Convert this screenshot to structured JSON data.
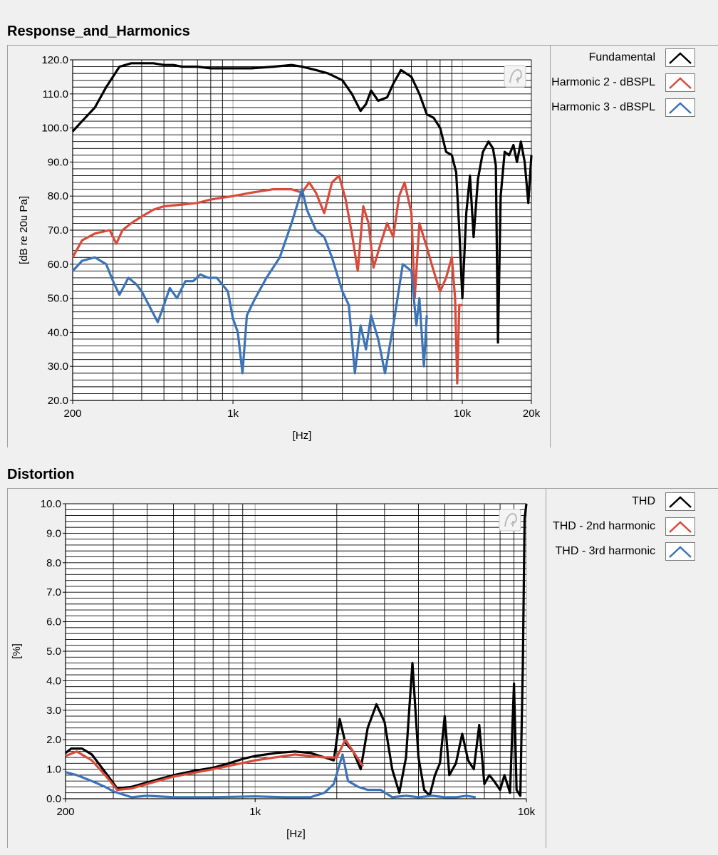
{
  "chart_data": [
    {
      "type": "line",
      "title": "Response_and_Harmonics",
      "xlabel": "[Hz]",
      "ylabel": "[dB re 20u Pa]",
      "xscale": "log",
      "xlim": [
        200,
        20000
      ],
      "ylim": [
        20,
        120
      ],
      "yticks": [
        "20.0",
        "30.0",
        "40.0",
        "50.0",
        "60.0",
        "70.0",
        "80.0",
        "90.0",
        "100.0",
        "110.0",
        "120.0"
      ],
      "xticks": [
        {
          "v": 200,
          "label": "200"
        },
        {
          "v": 1000,
          "label": "1k"
        },
        {
          "v": 10000,
          "label": "10k"
        },
        {
          "v": 20000,
          "label": "20k"
        }
      ],
      "grid": true,
      "legend_position": "right",
      "series": [
        {
          "name": "Fundamental",
          "color": "#000000",
          "points": [
            [
              200,
              99
            ],
            [
              220,
              102
            ],
            [
              250,
              106
            ],
            [
              280,
              112
            ],
            [
              320,
              118
            ],
            [
              360,
              119
            ],
            [
              400,
              119
            ],
            [
              450,
              119
            ],
            [
              500,
              118.5
            ],
            [
              550,
              118.5
            ],
            [
              600,
              118
            ],
            [
              700,
              118
            ],
            [
              800,
              117.5
            ],
            [
              1000,
              117.5
            ],
            [
              1200,
              117.5
            ],
            [
              1500,
              118
            ],
            [
              1800,
              118.5
            ],
            [
              2000,
              118
            ],
            [
              2300,
              117
            ],
            [
              2600,
              116
            ],
            [
              3000,
              114
            ],
            [
              3300,
              110
            ],
            [
              3600,
              105
            ],
            [
              3800,
              107
            ],
            [
              4000,
              111
            ],
            [
              4300,
              108
            ],
            [
              4700,
              109
            ],
            [
              5000,
              113
            ],
            [
              5400,
              117
            ],
            [
              6000,
              115
            ],
            [
              6500,
              110
            ],
            [
              7000,
              104
            ],
            [
              7500,
              103
            ],
            [
              8000,
              100
            ],
            [
              8500,
              93
            ],
            [
              9000,
              92
            ],
            [
              9400,
              87
            ],
            [
              9700,
              70
            ],
            [
              10000,
              50
            ],
            [
              10400,
              75
            ],
            [
              10800,
              86
            ],
            [
              11200,
              68
            ],
            [
              11700,
              85
            ],
            [
              12300,
              93
            ],
            [
              13000,
              96
            ],
            [
              13600,
              94
            ],
            [
              14000,
              89
            ],
            [
              14300,
              37
            ],
            [
              14700,
              80
            ],
            [
              15300,
              93
            ],
            [
              16000,
              92
            ],
            [
              16700,
              95
            ],
            [
              17300,
              90
            ],
            [
              18000,
              96
            ],
            [
              18700,
              90
            ],
            [
              19400,
              78
            ],
            [
              20000,
              92
            ]
          ]
        },
        {
          "name": "Harmonic 2 - dBSPL",
          "color": "#d94a3a",
          "points": [
            [
              200,
              62
            ],
            [
              220,
              67
            ],
            [
              250,
              69
            ],
            [
              290,
              70
            ],
            [
              310,
              66
            ],
            [
              330,
              70
            ],
            [
              360,
              72
            ],
            [
              400,
              74
            ],
            [
              450,
              76
            ],
            [
              500,
              77
            ],
            [
              600,
              77.5
            ],
            [
              700,
              78
            ],
            [
              800,
              79
            ],
            [
              1000,
              80
            ],
            [
              1200,
              81
            ],
            [
              1500,
              82
            ],
            [
              1800,
              82
            ],
            [
              2000,
              81
            ],
            [
              2150,
              84
            ],
            [
              2300,
              81
            ],
            [
              2500,
              75
            ],
            [
              2700,
              84
            ],
            [
              2900,
              86
            ],
            [
              3100,
              79
            ],
            [
              3300,
              69
            ],
            [
              3500,
              58
            ],
            [
              3700,
              77
            ],
            [
              3900,
              72
            ],
            [
              4100,
              59
            ],
            [
              4400,
              66
            ],
            [
              4700,
              72
            ],
            [
              5000,
              68
            ],
            [
              5300,
              80
            ],
            [
              5600,
              84
            ],
            [
              6000,
              75
            ],
            [
              6200,
              50
            ],
            [
              6500,
              72
            ],
            [
              7000,
              65
            ],
            [
              7500,
              58
            ],
            [
              8000,
              52
            ],
            [
              8500,
              56
            ],
            [
              9000,
              62
            ],
            [
              9300,
              50
            ],
            [
              9500,
              25
            ],
            [
              9700,
              48
            ],
            [
              10000,
              48
            ]
          ]
        },
        {
          "name": "Harmonic 3 - dBSPL",
          "color": "#3b73b9",
          "points": [
            [
              200,
              58
            ],
            [
              220,
              61
            ],
            [
              250,
              62
            ],
            [
              280,
              60
            ],
            [
              300,
              55
            ],
            [
              320,
              51
            ],
            [
              350,
              56
            ],
            [
              380,
              54
            ],
            [
              400,
              52
            ],
            [
              430,
              48
            ],
            [
              470,
              43
            ],
            [
              500,
              48
            ],
            [
              530,
              53
            ],
            [
              570,
              50
            ],
            [
              620,
              55
            ],
            [
              670,
              55
            ],
            [
              720,
              57
            ],
            [
              780,
              56
            ],
            [
              850,
              56
            ],
            [
              900,
              54
            ],
            [
              950,
              52
            ],
            [
              1000,
              44
            ],
            [
              1050,
              40
            ],
            [
              1100,
              28
            ],
            [
              1150,
              45
            ],
            [
              1250,
              50
            ],
            [
              1400,
              56
            ],
            [
              1600,
              62
            ],
            [
              1800,
              72
            ],
            [
              2000,
              82
            ],
            [
              2100,
              76
            ],
            [
              2300,
              70
            ],
            [
              2500,
              68
            ],
            [
              2700,
              62
            ],
            [
              3000,
              52
            ],
            [
              3200,
              48
            ],
            [
              3400,
              28
            ],
            [
              3600,
              42
            ],
            [
              3800,
              35
            ],
            [
              4000,
              45
            ],
            [
              4300,
              38
            ],
            [
              4600,
              28
            ],
            [
              5000,
              42
            ],
            [
              5500,
              60
            ],
            [
              6000,
              58
            ],
            [
              6300,
              42
            ],
            [
              6500,
              50
            ],
            [
              6800,
              30
            ],
            [
              7000,
              45
            ]
          ]
        }
      ]
    },
    {
      "type": "line",
      "title": "Distortion",
      "xlabel": "[Hz]",
      "ylabel": "[%]",
      "xscale": "log",
      "xlim": [
        200,
        10000
      ],
      "ylim": [
        0,
        10
      ],
      "yticks": [
        "0.0",
        "1.0",
        "2.0",
        "3.0",
        "4.0",
        "5.0",
        "6.0",
        "7.0",
        "8.0",
        "9.0",
        "10.0"
      ],
      "xticks": [
        {
          "v": 200,
          "label": "200"
        },
        {
          "v": 1000,
          "label": "1k"
        },
        {
          "v": 10000,
          "label": "10k"
        }
      ],
      "grid": true,
      "legend_position": "right",
      "series": [
        {
          "name": "THD",
          "color": "#000000",
          "points": [
            [
              200,
              1.55
            ],
            [
              210,
              1.7
            ],
            [
              230,
              1.7
            ],
            [
              250,
              1.5
            ],
            [
              280,
              0.9
            ],
            [
              310,
              0.35
            ],
            [
              350,
              0.4
            ],
            [
              400,
              0.55
            ],
            [
              500,
              0.8
            ],
            [
              600,
              0.95
            ],
            [
              700,
              1.05
            ],
            [
              800,
              1.2
            ],
            [
              900,
              1.35
            ],
            [
              1000,
              1.45
            ],
            [
              1200,
              1.55
            ],
            [
              1400,
              1.6
            ],
            [
              1600,
              1.55
            ],
            [
              1800,
              1.4
            ],
            [
              1950,
              1.3
            ],
            [
              2050,
              2.7
            ],
            [
              2150,
              1.9
            ],
            [
              2300,
              1.6
            ],
            [
              2450,
              1.0
            ],
            [
              2600,
              2.4
            ],
            [
              2800,
              3.2
            ],
            [
              3000,
              2.6
            ],
            [
              3200,
              1.0
            ],
            [
              3400,
              0.2
            ],
            [
              3600,
              1.4
            ],
            [
              3800,
              4.6
            ],
            [
              4000,
              1.4
            ],
            [
              4200,
              0.3
            ],
            [
              4400,
              0.1
            ],
            [
              4600,
              0.8
            ],
            [
              4800,
              1.2
            ],
            [
              5000,
              2.8
            ],
            [
              5200,
              0.8
            ],
            [
              5500,
              1.2
            ],
            [
              5800,
              2.2
            ],
            [
              6100,
              1.3
            ],
            [
              6400,
              1.0
            ],
            [
              6700,
              2.5
            ],
            [
              7000,
              0.5
            ],
            [
              7300,
              0.8
            ],
            [
              7600,
              0.6
            ],
            [
              8000,
              0.3
            ],
            [
              8300,
              0.8
            ],
            [
              8700,
              0.2
            ],
            [
              9000,
              3.9
            ],
            [
              9200,
              0.3
            ],
            [
              9500,
              0.1
            ],
            [
              9700,
              4.5
            ],
            [
              9850,
              9.5
            ],
            [
              10000,
              10
            ]
          ]
        },
        {
          "name": "THD - 2nd harmonic",
          "color": "#d94a3a",
          "points": [
            [
              200,
              1.45
            ],
            [
              220,
              1.6
            ],
            [
              250,
              1.3
            ],
            [
              280,
              0.8
            ],
            [
              310,
              0.3
            ],
            [
              350,
              0.35
            ],
            [
              400,
              0.5
            ],
            [
              500,
              0.75
            ],
            [
              700,
              1.0
            ],
            [
              1000,
              1.3
            ],
            [
              1400,
              1.5
            ],
            [
              1800,
              1.4
            ],
            [
              2000,
              1.4
            ],
            [
              2150,
              2.0
            ],
            [
              2300,
              1.6
            ],
            [
              2500,
              1.1
            ]
          ]
        },
        {
          "name": "THD - 3rd harmonic",
          "color": "#3b73b9",
          "points": [
            [
              200,
              0.9
            ],
            [
              220,
              0.8
            ],
            [
              250,
              0.6
            ],
            [
              280,
              0.4
            ],
            [
              300,
              0.25
            ],
            [
              350,
              0.05
            ],
            [
              400,
              0.1
            ],
            [
              500,
              0.05
            ],
            [
              700,
              0.05
            ],
            [
              1000,
              0.08
            ],
            [
              1300,
              0.05
            ],
            [
              1600,
              0.05
            ],
            [
              1800,
              0.2
            ],
            [
              1950,
              0.5
            ],
            [
              2100,
              1.5
            ],
            [
              2200,
              0.6
            ],
            [
              2400,
              0.4
            ],
            [
              2600,
              0.3
            ],
            [
              2900,
              0.3
            ],
            [
              3200,
              0.05
            ],
            [
              3600,
              0.1
            ],
            [
              4000,
              0.05
            ],
            [
              4500,
              0.1
            ],
            [
              5000,
              0.05
            ],
            [
              5500,
              0.05
            ],
            [
              6000,
              0.1
            ],
            [
              6500,
              0.05
            ]
          ]
        }
      ]
    }
  ]
}
